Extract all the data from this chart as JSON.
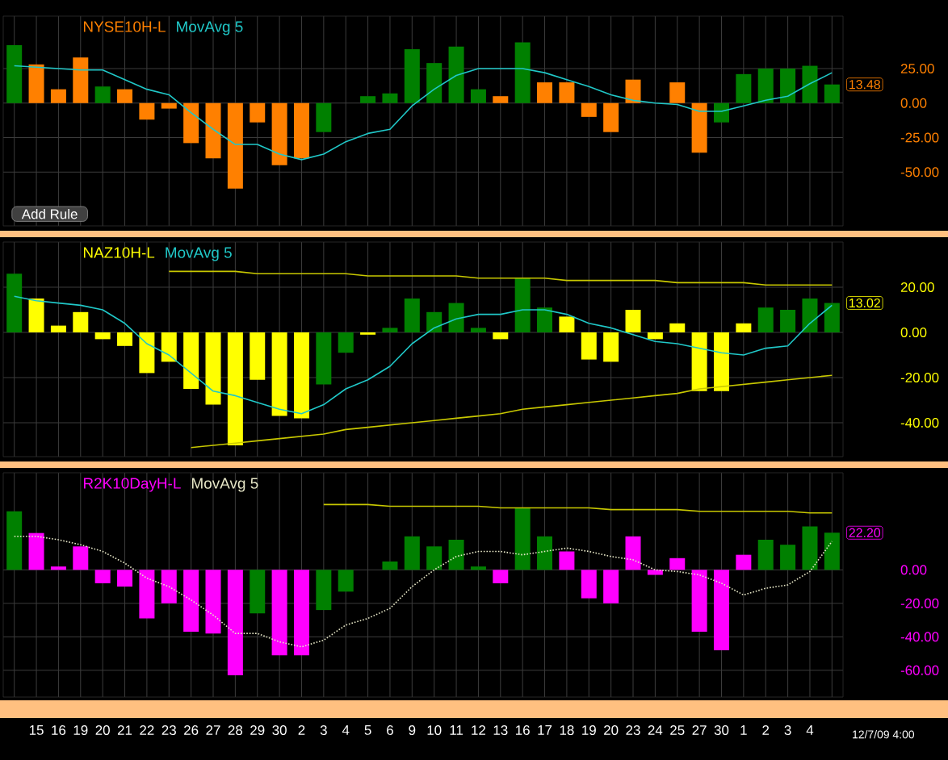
{
  "chart_data": [
    {
      "type": "bar",
      "categories": [
        null,
        "15",
        "16",
        "19",
        "20",
        "21",
        "22",
        "23",
        "26",
        "27",
        "28",
        "29",
        "30",
        "2",
        "3",
        "4",
        "5",
        "6",
        "9",
        "10",
        "11",
        "12",
        "13",
        "16",
        "17",
        "18",
        "19",
        "20",
        "23",
        "24",
        "25",
        "27",
        "30",
        "1",
        "2",
        "3",
        "4",
        null
      ],
      "ylim": [
        -89,
        63
      ],
      "yticks": [
        {
          "value": 25,
          "label": "25.00"
        },
        {
          "value": 0,
          "label": "0.00"
        },
        {
          "value": -25,
          "label": "-25.00"
        },
        {
          "value": -50,
          "label": "-50.00"
        }
      ],
      "grid": true,
      "legend": "top left",
      "tick_labels": "y",
      "series": [
        {
          "name": "NYSE10H-L",
          "color": "#ff8000",
          "colors": [
            "#008000",
            "#ff8000",
            "#ff8000",
            "#ff8000",
            "#008000",
            "#ff8000",
            "#ff8000",
            "#ff8000",
            "#ff8000",
            "#ff8000",
            "#ff8000",
            "#ff8000",
            "#ff8000",
            "#ff8000",
            "#008000",
            "#008000",
            "#008000",
            "#008000",
            "#008000",
            "#008000",
            "#008000",
            "#008000",
            "#ff8000",
            "#008000",
            "#ff8000",
            "#ff8000",
            "#ff8000",
            "#ff8000",
            "#ff8000",
            "#ff8000",
            "#ff8000",
            "#ff8000",
            "#008000",
            "#008000",
            "#008000",
            "#008000",
            "#008000",
            "#008000"
          ],
          "values": [
            42,
            28,
            10,
            33,
            12,
            10,
            -12,
            -4,
            -29,
            -40,
            -62,
            -14,
            -45,
            -40,
            -21,
            0,
            5,
            7,
            39,
            29,
            41,
            10,
            5,
            44,
            15,
            15,
            -10,
            -21,
            17,
            0,
            15,
            -36,
            -14,
            21,
            25,
            25,
            27,
            13.48
          ]
        },
        {
          "type": "line",
          "name": "MovAvg 5",
          "color": "#20c8c8",
          "values": [
            27,
            26,
            25,
            24,
            24,
            17,
            10,
            6,
            -7,
            -19,
            -30,
            -30,
            -37,
            -41,
            -37,
            -28,
            -22,
            -19,
            -2,
            10,
            20,
            25,
            25,
            25,
            22,
            17,
            12,
            6,
            2,
            0,
            -1,
            -6,
            -6,
            -2,
            2,
            5,
            14,
            22
          ]
        }
      ],
      "annotations": [
        {
          "text": "13.48",
          "y": 13.48
        },
        "Add Rule"
      ]
    },
    {
      "type": "bar",
      "categories": [
        null,
        "15",
        "16",
        "19",
        "20",
        "21",
        "22",
        "23",
        "26",
        "27",
        "28",
        "29",
        "30",
        "2",
        "3",
        "4",
        "5",
        "6",
        "9",
        "10",
        "11",
        "12",
        "13",
        "16",
        "17",
        "18",
        "19",
        "20",
        "23",
        "24",
        "25",
        "27",
        "30",
        "1",
        "2",
        "3",
        "4",
        null
      ],
      "ylim": [
        -55,
        40
      ],
      "yticks": [
        {
          "value": 20,
          "label": "20.00"
        },
        {
          "value": 0,
          "label": "0.00"
        },
        {
          "value": -20,
          "label": "-20.00"
        },
        {
          "value": -40,
          "label": "-40.00"
        }
      ],
      "grid": true,
      "legend": "top left",
      "tick_labels": "y",
      "series": [
        {
          "name": "NAZ10H-L",
          "color": "#ffff00",
          "colors": [
            "#008000",
            "#ffff00",
            "#ffff00",
            "#ffff00",
            "#ffff00",
            "#ffff00",
            "#ffff00",
            "#ffff00",
            "#ffff00",
            "#ffff00",
            "#ffff00",
            "#ffff00",
            "#ffff00",
            "#ffff00",
            "#008000",
            "#008000",
            "#ffff00",
            "#008000",
            "#008000",
            "#008000",
            "#008000",
            "#008000",
            "#ffff00",
            "#008000",
            "#008000",
            "#ffff00",
            "#ffff00",
            "#ffff00",
            "#ffff00",
            "#ffff00",
            "#ffff00",
            "#ffff00",
            "#ffff00",
            "#ffff00",
            "#008000",
            "#008000",
            "#008000",
            "#008000"
          ],
          "values": [
            26,
            15,
            3,
            9,
            -3,
            -6,
            -18,
            -13,
            -25,
            -32,
            -50,
            -21,
            -37,
            -38,
            -23,
            -9,
            -1,
            2,
            15,
            9,
            13,
            2,
            -3,
            24,
            11,
            7,
            -12,
            -13,
            10,
            -3,
            4,
            -26,
            -26,
            4,
            11,
            10,
            15,
            13.02
          ]
        },
        {
          "type": "line",
          "name": "MovAvg 5",
          "color": "#20c8c8",
          "values": [
            16,
            14,
            13,
            12,
            10,
            4,
            -5,
            -10,
            -18,
            -26,
            -28,
            -31,
            -34,
            -36,
            -32,
            -25,
            -21,
            -15,
            -5,
            2,
            6,
            8,
            8,
            10,
            10,
            8,
            4,
            2,
            -1,
            -4,
            -5,
            -7,
            -9,
            -10,
            -7,
            -6,
            4,
            12
          ]
        },
        {
          "type": "line",
          "color": "#c8c800",
          "values": [
            null,
            null,
            null,
            null,
            null,
            null,
            null,
            27,
            27,
            27,
            27,
            26,
            26,
            26,
            26,
            26,
            25,
            25,
            25,
            25,
            25,
            24,
            24,
            24,
            24,
            23,
            23,
            23,
            23,
            23,
            22,
            22,
            22,
            22,
            21,
            21,
            21,
            21
          ]
        },
        {
          "type": "line",
          "color": "#c8c800",
          "values": [
            null,
            null,
            null,
            null,
            null,
            null,
            null,
            null,
            -51,
            -50,
            -49,
            -48,
            -47,
            -46,
            -45,
            -43,
            -42,
            -41,
            -40,
            -39,
            -38,
            -37,
            -36,
            -34,
            -33,
            -32,
            -31,
            -30,
            -29,
            -28,
            -27,
            -25,
            -24,
            -23,
            -22,
            -21,
            -20,
            -19
          ]
        }
      ],
      "annotations": [
        {
          "text": "13.02",
          "y": 13.02
        }
      ]
    },
    {
      "type": "bar",
      "categories": [
        null,
        "15",
        "16",
        "19",
        "20",
        "21",
        "22",
        "23",
        "26",
        "27",
        "28",
        "29",
        "30",
        "2",
        "3",
        "4",
        "5",
        "6",
        "9",
        "10",
        "11",
        "12",
        "13",
        "16",
        "17",
        "18",
        "19",
        "20",
        "23",
        "24",
        "25",
        "27",
        "30",
        "1",
        "2",
        "3",
        "4",
        null
      ],
      "ylim": [
        -76,
        58
      ],
      "yticks": [
        {
          "value": 0,
          "label": "0.00"
        },
        {
          "value": -20,
          "label": "-20.00"
        },
        {
          "value": -40,
          "label": "-40.00"
        },
        {
          "value": -60,
          "label": "-60.00"
        }
      ],
      "grid": true,
      "legend": "top left",
      "series": [
        {
          "name": "R2K10DayH-L",
          "color": "#ff00ff",
          "colors": [
            "#008000",
            "#ff00ff",
            "#ff00ff",
            "#ff00ff",
            "#ff00ff",
            "#ff00ff",
            "#ff00ff",
            "#ff00ff",
            "#ff00ff",
            "#ff00ff",
            "#ff00ff",
            "#008000",
            "#ff00ff",
            "#ff00ff",
            "#008000",
            "#008000",
            "#008000",
            "#008000",
            "#008000",
            "#008000",
            "#008000",
            "#008000",
            "#ff00ff",
            "#008000",
            "#008000",
            "#ff00ff",
            "#ff00ff",
            "#ff00ff",
            "#ff00ff",
            "#ff00ff",
            "#ff00ff",
            "#ff00ff",
            "#ff00ff",
            "#ff00ff",
            "#008000",
            "#008000",
            "#008000",
            "#008000"
          ],
          "values": [
            35,
            22,
            2,
            14,
            -8,
            -10,
            -29,
            -20,
            -37,
            -38,
            -63,
            -26,
            -51,
            -51,
            -24,
            -13,
            0,
            5,
            20,
            14,
            18,
            2,
            -8,
            37,
            20,
            11,
            -17,
            -20,
            20,
            -3,
            7,
            -37,
            -48,
            9,
            18,
            15,
            26,
            22.2
          ]
        },
        {
          "type": "line",
          "name": "MovAvg 5",
          "color": "#e8e8c8",
          "line_style": "dotted",
          "values": [
            20,
            20,
            18,
            15,
            11,
            4,
            -5,
            -10,
            -18,
            -27,
            -38,
            -38,
            -43,
            -46,
            -42,
            -33,
            -29,
            -23,
            -10,
            0,
            8,
            11,
            11,
            9,
            11,
            13,
            11,
            8,
            6,
            0,
            -1,
            -3,
            -8,
            -15,
            -11,
            -9,
            -1,
            17
          ]
        },
        {
          "type": "line",
          "color": "#c8c800",
          "values": [
            null,
            null,
            null,
            null,
            null,
            null,
            null,
            null,
            null,
            null,
            null,
            null,
            null,
            null,
            39,
            39,
            39,
            38,
            38,
            38,
            38,
            38,
            37,
            37,
            37,
            37,
            37,
            36,
            36,
            36,
            36,
            35,
            35,
            35,
            35,
            35,
            34,
            34
          ]
        }
      ],
      "annotations": [
        {
          "text": "22.20",
          "y": 22.2
        },
        "12/7/09 4:00"
      ]
    }
  ]
}
